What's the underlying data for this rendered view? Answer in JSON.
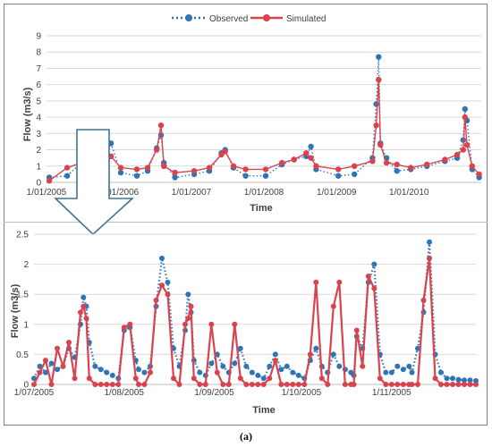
{
  "caption": "(a)",
  "legend": {
    "observed": "Observed",
    "simulated": "Simulated"
  },
  "colors": {
    "observed": "#2e75b6",
    "simulated": "#d9434e",
    "grid": "#d9d9d9",
    "axis": "#bfbfbf",
    "arrow": "#41719c"
  },
  "chart_data": [
    {
      "type": "line",
      "xlabel": "Time",
      "ylabel": "Flow (m3/s)",
      "ylim": [
        0,
        9
      ],
      "yticks": [
        "0",
        "1",
        "2",
        "3",
        "4",
        "5",
        "6",
        "7",
        "8",
        "9"
      ],
      "xlim": [
        "2005-01-01",
        "2010-12-31"
      ],
      "xtick_labels": [
        "1/01/2005",
        "1/01/2006",
        "1/01/2007",
        "1/01/2008",
        "1/01/2009",
        "1/01/2010"
      ],
      "grid": "horizontal",
      "legend_position": "top",
      "series": [
        {
          "name": "Observed",
          "style": "dotted-markers",
          "x": [
            "2005-01-15",
            "2005-04-15",
            "2005-07-18",
            "2005-07-26",
            "2005-08-10",
            "2005-08-27",
            "2005-09-15",
            "2005-10-01",
            "2005-10-24",
            "2005-11-22",
            "2006-01-10",
            "2006-04-01",
            "2006-05-25",
            "2006-07-10",
            "2006-08-01",
            "2006-08-15",
            "2006-10-10",
            "2007-01-15",
            "2007-04-01",
            "2007-06-01",
            "2007-06-20",
            "2007-08-01",
            "2007-10-01",
            "2008-01-10",
            "2008-04-01",
            "2008-06-01",
            "2008-08-01",
            "2008-08-25",
            "2008-09-20",
            "2009-01-10",
            "2009-04-01",
            "2009-07-01",
            "2009-07-20",
            "2009-08-01",
            "2009-08-10",
            "2009-09-10",
            "2009-11-01",
            "2010-01-10",
            "2010-04-01",
            "2010-07-01",
            "2010-09-01",
            "2010-10-01",
            "2010-10-10",
            "2010-10-20",
            "2010-11-15",
            "2010-12-20"
          ],
          "y": [
            0.3,
            0.4,
            1.45,
            0.9,
            2.1,
            1.7,
            1.5,
            1.0,
            1.7,
            2.4,
            0.6,
            0.4,
            0.7,
            2.1,
            2.9,
            1.2,
            0.3,
            0.5,
            0.7,
            1.8,
            2.0,
            0.9,
            0.4,
            0.4,
            1.1,
            1.4,
            1.6,
            2.2,
            0.8,
            0.4,
            0.5,
            1.5,
            4.8,
            7.7,
            2.4,
            1.5,
            0.7,
            0.8,
            1.0,
            1.3,
            1.5,
            2.6,
            4.5,
            3.8,
            0.8,
            0.3
          ]
        },
        {
          "name": "Simulated",
          "style": "solid-markers",
          "x": [
            "2005-01-15",
            "2005-04-15",
            "2005-07-18",
            "2005-07-26",
            "2005-08-10",
            "2005-08-27",
            "2005-09-15",
            "2005-10-01",
            "2005-10-24",
            "2005-11-22",
            "2006-01-10",
            "2006-04-01",
            "2006-05-25",
            "2006-07-10",
            "2006-08-01",
            "2006-08-15",
            "2006-10-10",
            "2007-01-15",
            "2007-04-01",
            "2007-06-01",
            "2007-06-20",
            "2007-08-01",
            "2007-10-01",
            "2008-01-10",
            "2008-04-01",
            "2008-06-01",
            "2008-08-01",
            "2008-08-25",
            "2008-09-20",
            "2009-01-10",
            "2009-04-01",
            "2009-07-01",
            "2009-07-20",
            "2009-08-01",
            "2009-08-10",
            "2009-09-10",
            "2009-11-01",
            "2010-01-10",
            "2010-04-01",
            "2010-07-01",
            "2010-09-01",
            "2010-10-01",
            "2010-10-10",
            "2010-10-20",
            "2010-11-15",
            "2010-12-20"
          ],
          "y": [
            0.1,
            0.9,
            1.3,
            1.0,
            1.6,
            1.7,
            1.4,
            1.1,
            1.7,
            1.6,
            0.9,
            0.8,
            0.9,
            2.0,
            3.5,
            1.0,
            0.6,
            0.7,
            0.9,
            1.7,
            1.9,
            1.0,
            0.8,
            0.8,
            1.2,
            1.4,
            1.8,
            1.5,
            1.0,
            0.8,
            1.0,
            1.3,
            3.5,
            6.3,
            2.3,
            1.2,
            1.1,
            0.9,
            1.1,
            1.4,
            1.7,
            2.0,
            4.0,
            2.3,
            1.0,
            0.5
          ]
        }
      ]
    },
    {
      "type": "line",
      "xlabel": "Time",
      "ylabel": "Flow (m3/s)",
      "ylim": [
        0,
        2.5
      ],
      "yticks": [
        "0",
        "0.5",
        "1",
        "1.5",
        "2",
        "2.5"
      ],
      "xlim": [
        "2005-07-01",
        "2005-11-30"
      ],
      "xtick_labels": [
        "1/07/2005",
        "1/08/2005",
        "1/09/2005",
        "1/10/2005",
        "1/11/2005"
      ],
      "grid": "horizontal",
      "series": [
        {
          "name": "Observed",
          "style": "dotted-markers",
          "x": [
            "2005-07-01",
            "2005-07-03",
            "2005-07-05",
            "2005-07-07",
            "2005-07-09",
            "2005-07-11",
            "2005-07-13",
            "2005-07-15",
            "2005-07-17",
            "2005-07-18",
            "2005-07-19",
            "2005-07-20",
            "2005-07-22",
            "2005-07-24",
            "2005-07-26",
            "2005-07-28",
            "2005-07-30",
            "2005-08-01",
            "2005-08-03",
            "2005-08-05",
            "2005-08-06",
            "2005-08-08",
            "2005-08-10",
            "2005-08-12",
            "2005-08-14",
            "2005-08-16",
            "2005-08-18",
            "2005-08-20",
            "2005-08-22",
            "2005-08-23",
            "2005-08-24",
            "2005-08-25",
            "2005-08-27",
            "2005-08-29",
            "2005-08-31",
            "2005-09-02",
            "2005-09-04",
            "2005-09-06",
            "2005-09-08",
            "2005-09-10",
            "2005-09-12",
            "2005-09-14",
            "2005-09-16",
            "2005-09-18",
            "2005-09-20",
            "2005-09-22",
            "2005-09-24",
            "2005-09-26",
            "2005-09-28",
            "2005-09-30",
            "2005-10-02",
            "2005-10-04",
            "2005-10-06",
            "2005-10-08",
            "2005-10-10",
            "2005-10-12",
            "2005-10-14",
            "2005-10-16",
            "2005-10-18",
            "2005-10-19",
            "2005-10-20",
            "2005-10-22",
            "2005-10-24",
            "2005-10-26",
            "2005-10-28",
            "2005-10-30",
            "2005-11-01",
            "2005-11-03",
            "2005-11-05",
            "2005-11-07",
            "2005-11-08",
            "2005-11-10",
            "2005-11-12",
            "2005-11-14",
            "2005-11-16",
            "2005-11-18",
            "2005-11-20",
            "2005-11-22",
            "2005-11-24",
            "2005-11-26",
            "2005-11-28",
            "2005-11-30"
          ],
          "y": [
            0.1,
            0.3,
            0.2,
            0.35,
            0.25,
            0.3,
            0.6,
            0.45,
            1.0,
            1.45,
            1.3,
            0.7,
            0.3,
            0.25,
            0.2,
            0.15,
            0.1,
            0.9,
            0.95,
            0.4,
            0.25,
            0.2,
            0.3,
            1.3,
            2.1,
            1.7,
            0.6,
            0.3,
            0.9,
            1.5,
            1.2,
            0.4,
            0.2,
            0.15,
            0.35,
            0.5,
            0.3,
            0.2,
            0.35,
            0.6,
            0.3,
            0.2,
            0.15,
            0.1,
            0.3,
            0.5,
            0.25,
            0.3,
            0.2,
            0.15,
            0.1,
            0.4,
            0.6,
            0.3,
            0.2,
            0.5,
            0.3,
            0.25,
            0.2,
            0.15,
            0.8,
            0.6,
            1.7,
            2.0,
            0.5,
            0.2,
            0.2,
            0.3,
            0.25,
            0.3,
            0.2,
            0.6,
            1.2,
            2.37,
            0.5,
            0.2,
            0.1,
            0.1,
            0.08,
            0.07,
            0.07,
            0.06
          ],
          "comment_dates_are_reading_positions": ""
        },
        {
          "name": "Simulated",
          "style": "solid-markers",
          "x": [
            "2005-07-01",
            "2005-07-03",
            "2005-07-05",
            "2005-07-07",
            "2005-07-09",
            "2005-07-11",
            "2005-07-13",
            "2005-07-15",
            "2005-07-17",
            "2005-07-18",
            "2005-07-19",
            "2005-07-20",
            "2005-07-22",
            "2005-07-24",
            "2005-07-26",
            "2005-07-28",
            "2005-07-30",
            "2005-08-01",
            "2005-08-03",
            "2005-08-05",
            "2005-08-06",
            "2005-08-08",
            "2005-08-10",
            "2005-08-12",
            "2005-08-14",
            "2005-08-16",
            "2005-08-18",
            "2005-08-20",
            "2005-08-22",
            "2005-08-23",
            "2005-08-24",
            "2005-08-25",
            "2005-08-27",
            "2005-08-29",
            "2005-08-31",
            "2005-09-02",
            "2005-09-04",
            "2005-09-06",
            "2005-09-08",
            "2005-09-10",
            "2005-09-12",
            "2005-09-14",
            "2005-09-16",
            "2005-09-18",
            "2005-09-20",
            "2005-09-22",
            "2005-09-24",
            "2005-09-26",
            "2005-09-28",
            "2005-09-30",
            "2005-10-02",
            "2005-10-04",
            "2005-10-06",
            "2005-10-08",
            "2005-10-10",
            "2005-10-12",
            "2005-10-14",
            "2005-10-16",
            "2005-10-18",
            "2005-10-19",
            "2005-10-20",
            "2005-10-22",
            "2005-10-24",
            "2005-10-26",
            "2005-10-28",
            "2005-10-30",
            "2005-11-01",
            "2005-11-03",
            "2005-11-05",
            "2005-11-07",
            "2005-11-08",
            "2005-11-10",
            "2005-11-12",
            "2005-11-14",
            "2005-11-16",
            "2005-11-18",
            "2005-11-20",
            "2005-11-22",
            "2005-11-24",
            "2005-11-26",
            "2005-11-28",
            "2005-11-30"
          ],
          "y": [
            0.0,
            0.2,
            0.4,
            0.0,
            0.6,
            0.3,
            0.7,
            0.1,
            1.2,
            1.3,
            1.1,
            0.1,
            0.0,
            0.0,
            0.0,
            0.0,
            0.0,
            0.95,
            1.0,
            0.1,
            0.0,
            0.0,
            0.2,
            1.4,
            1.65,
            1.5,
            0.1,
            0.0,
            1.0,
            1.1,
            1.3,
            0.1,
            0.0,
            0.0,
            1.0,
            0.2,
            0.0,
            0.0,
            1.0,
            0.1,
            0.0,
            0.0,
            0.0,
            0.0,
            0.1,
            0.4,
            0.0,
            0.0,
            0.0,
            0.0,
            0.0,
            0.5,
            1.7,
            0.1,
            0.0,
            1.3,
            1.7,
            0.0,
            0.0,
            0.0,
            0.9,
            0.3,
            1.8,
            1.6,
            0.1,
            0.0,
            0.0,
            0.0,
            0.0,
            0.0,
            0.0,
            0.0,
            1.4,
            2.1,
            0.1,
            0.0,
            0.0,
            0.0,
            0.0,
            0.0,
            0.0,
            0.0
          ]
        }
      ]
    }
  ]
}
